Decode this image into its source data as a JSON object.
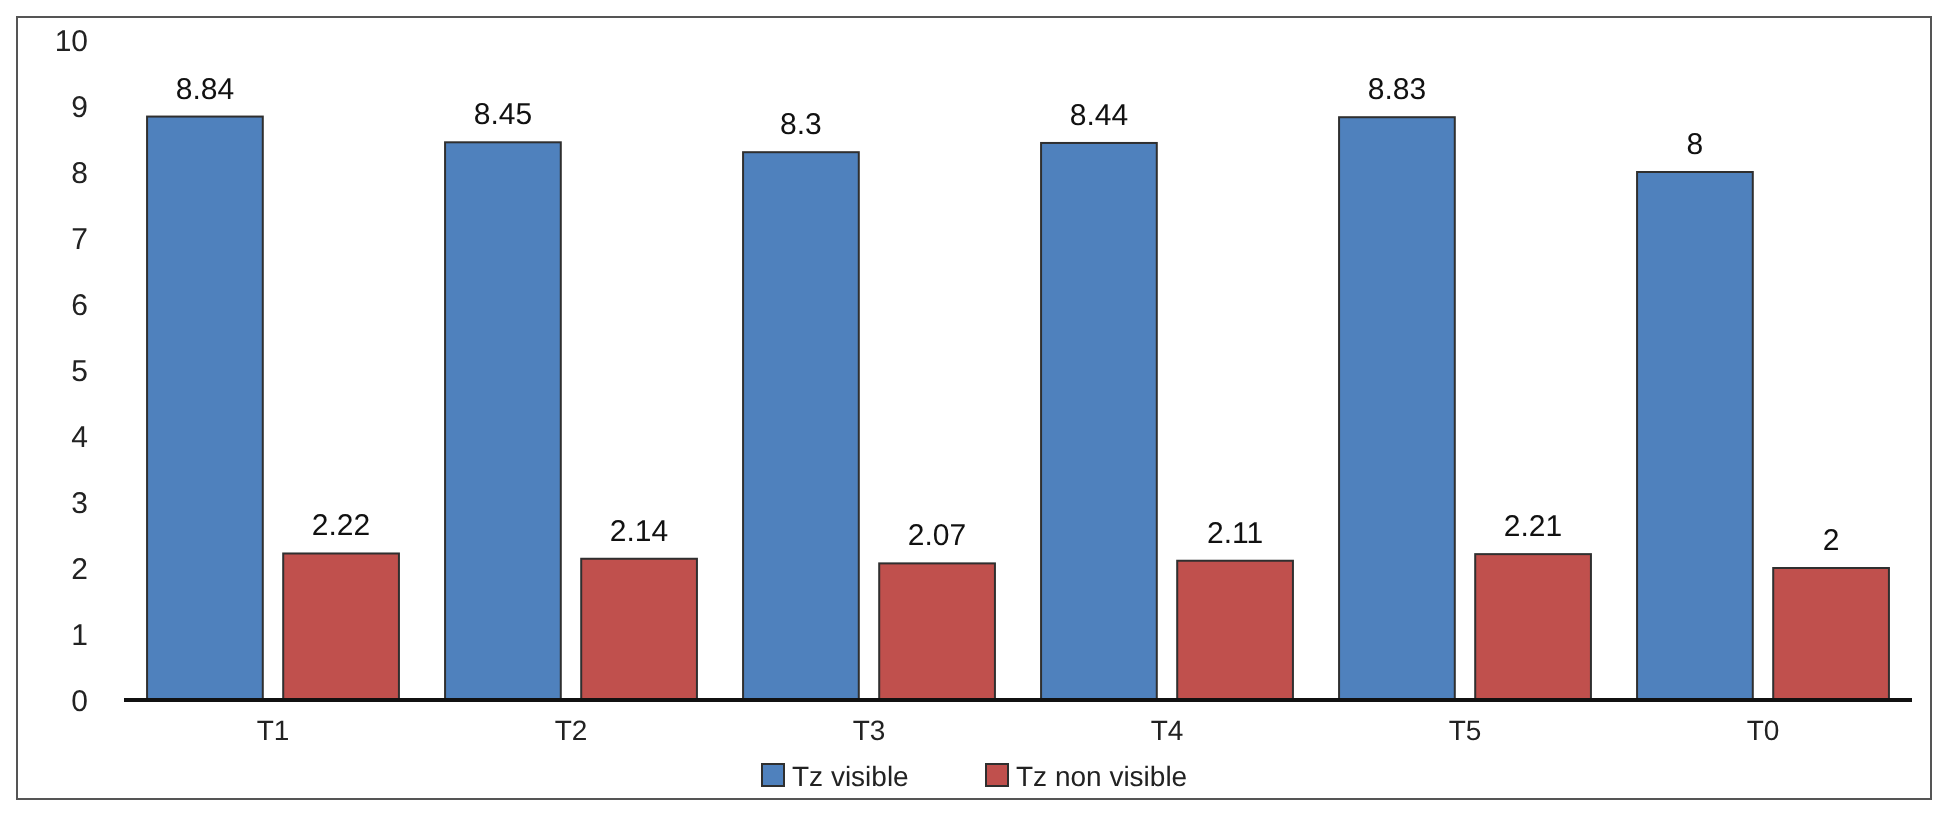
{
  "chart_data": {
    "type": "bar",
    "categories": [
      "T1",
      "T2",
      "T3",
      "T4",
      "T5",
      "T0"
    ],
    "series": [
      {
        "name": "Tz visible",
        "color": "#4f81bd",
        "values": [
          8.84,
          8.45,
          8.3,
          8.44,
          8.83,
          8
        ]
      },
      {
        "name": "Tz non visible",
        "color": "#c0504d",
        "values": [
          2.22,
          2.14,
          2.07,
          2.11,
          2.21,
          2
        ]
      }
    ],
    "ylim": [
      0,
      10
    ],
    "yticks": [
      0,
      1,
      2,
      3,
      4,
      5,
      6,
      7,
      8,
      9,
      10
    ],
    "data_labels": true,
    "legend": "bottom",
    "grid": false
  }
}
